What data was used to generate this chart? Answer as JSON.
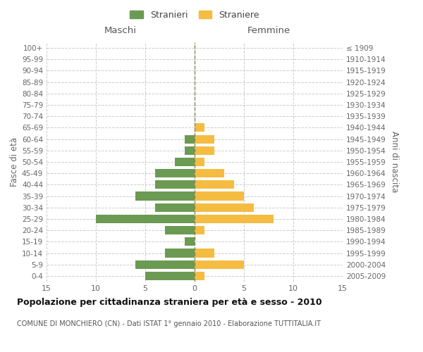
{
  "age_groups": [
    "0-4",
    "5-9",
    "10-14",
    "15-19",
    "20-24",
    "25-29",
    "30-34",
    "35-39",
    "40-44",
    "45-49",
    "50-54",
    "55-59",
    "60-64",
    "65-69",
    "70-74",
    "75-79",
    "80-84",
    "85-89",
    "90-94",
    "95-99",
    "100+"
  ],
  "birth_years": [
    "2005-2009",
    "2000-2004",
    "1995-1999",
    "1990-1994",
    "1985-1989",
    "1980-1984",
    "1975-1979",
    "1970-1974",
    "1965-1969",
    "1960-1964",
    "1955-1959",
    "1950-1954",
    "1945-1949",
    "1940-1944",
    "1935-1939",
    "1930-1934",
    "1925-1929",
    "1920-1924",
    "1915-1919",
    "1910-1914",
    "≤ 1909"
  ],
  "maschi": [
    5,
    6,
    3,
    1,
    3,
    10,
    4,
    6,
    4,
    4,
    2,
    1,
    1,
    0,
    0,
    0,
    0,
    0,
    0,
    0,
    0
  ],
  "femmine": [
    1,
    5,
    2,
    0,
    1,
    8,
    6,
    5,
    4,
    3,
    1,
    2,
    2,
    1,
    0,
    0,
    0,
    0,
    0,
    0,
    0
  ],
  "color_maschi": "#6b9a52",
  "color_femmine": "#f5bc42",
  "title": "Popolazione per cittadinanza straniera per età e sesso - 2010",
  "subtitle": "COMUNE DI MONCHIERO (CN) - Dati ISTAT 1° gennaio 2010 - Elaborazione TUTTITALIA.IT",
  "xlabel_left": "Maschi",
  "xlabel_right": "Femmine",
  "ylabel_left": "Fasce di età",
  "ylabel_right": "Anni di nascita",
  "legend_maschi": "Stranieri",
  "legend_femmine": "Straniere",
  "xlim": 15,
  "background_color": "#ffffff",
  "grid_color": "#cccccc"
}
